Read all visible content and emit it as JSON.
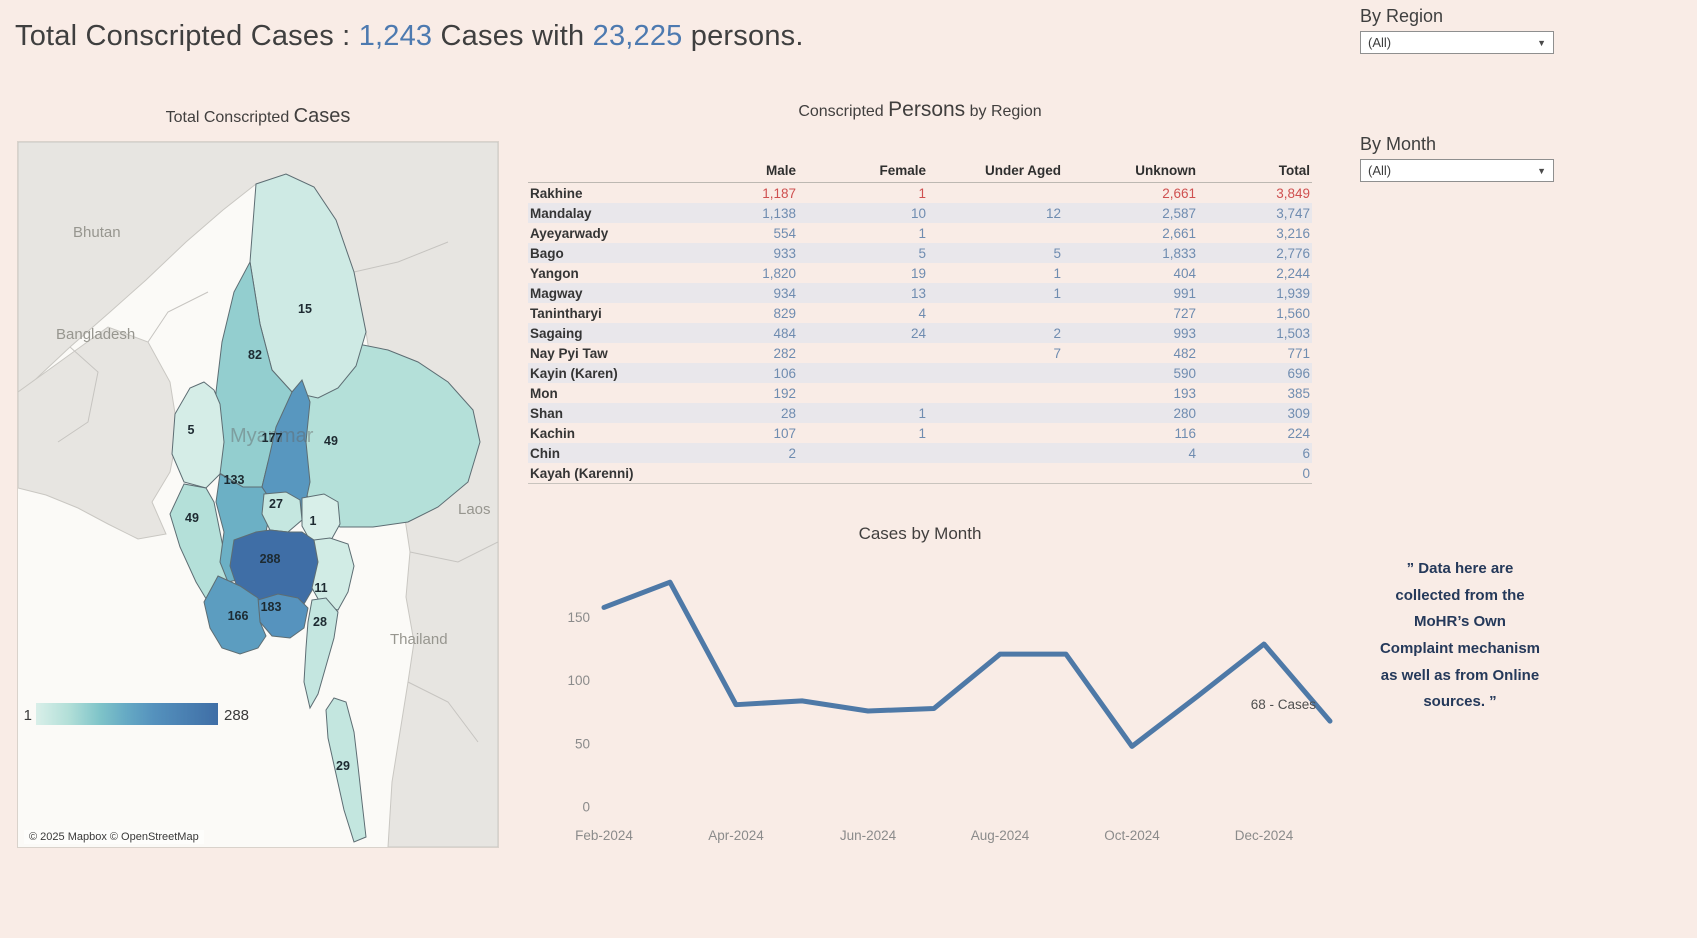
{
  "header": {
    "title_parts": [
      {
        "text": "Total Conscripted Cases : ",
        "accent": false
      },
      {
        "text": "1,243",
        "accent": true
      },
      {
        "text": " Cases with ",
        "accent": false
      },
      {
        "text": "23,225",
        "accent": true
      },
      {
        "text": " persons.",
        "accent": false
      }
    ],
    "accent_color": "#4d7ab0"
  },
  "filters": {
    "region": {
      "label": "By Region",
      "value": "(All)"
    },
    "month": {
      "label": "By Month",
      "value": "(All)"
    }
  },
  "map_panel": {
    "title_prefix": "Total Conscripted ",
    "title_big": "Cases",
    "legend": {
      "min": "1",
      "max": "288"
    },
    "attribution": "© 2025 Mapbox  © OpenStreetMap",
    "country_labels": [
      "Bhutan",
      "Bangladesh",
      "Myanmar",
      "Laos",
      "Thailand"
    ],
    "color_stops": [
      [
        0,
        "#d9efe9"
      ],
      [
        0.18,
        "#b2dfd8"
      ],
      [
        0.35,
        "#7fc4c9"
      ],
      [
        0.5,
        "#65a9c4"
      ],
      [
        0.65,
        "#5491bd"
      ],
      [
        1,
        "#3f6ea6"
      ]
    ],
    "max_value": 288,
    "regions": {
      "kachin": 15,
      "sagaing": 82,
      "chin": 5,
      "shan": 49,
      "mandalay": 177,
      "magway": 133,
      "rakhine": 49,
      "naypyitaw": 27,
      "kayah": 1,
      "bago": 288,
      "kayin": 11,
      "yangon": 183,
      "mon": 28,
      "ayeyarwady": 166,
      "tanintharyi": 29
    }
  },
  "table": {
    "title_prefix": "Conscripted ",
    "title_big": "Persons",
    "title_suffix": " by Region",
    "columns": [
      "",
      "Male",
      "Female",
      "Under Aged",
      "Unknown",
      "Total"
    ],
    "highlight_color": "#cf5050",
    "rows": [
      {
        "region": "Rakhine",
        "male": "1,187",
        "female": "1",
        "under_aged": "",
        "unknown": "2,661",
        "total": "3,849",
        "highlight": true
      },
      {
        "region": "Mandalay",
        "male": "1,138",
        "female": "10",
        "under_aged": "12",
        "unknown": "2,587",
        "total": "3,747",
        "highlight": false
      },
      {
        "region": "Ayeyarwady",
        "male": "554",
        "female": "1",
        "under_aged": "",
        "unknown": "2,661",
        "total": "3,216",
        "highlight": false
      },
      {
        "region": "Bago",
        "male": "933",
        "female": "5",
        "under_aged": "5",
        "unknown": "1,833",
        "total": "2,776",
        "highlight": false
      },
      {
        "region": "Yangon",
        "male": "1,820",
        "female": "19",
        "under_aged": "1",
        "unknown": "404",
        "total": "2,244",
        "highlight": false
      },
      {
        "region": "Magway",
        "male": "934",
        "female": "13",
        "under_aged": "1",
        "unknown": "991",
        "total": "1,939",
        "highlight": false
      },
      {
        "region": "Tanintharyi",
        "male": "829",
        "female": "4",
        "under_aged": "",
        "unknown": "727",
        "total": "1,560",
        "highlight": false
      },
      {
        "region": "Sagaing",
        "male": "484",
        "female": "24",
        "under_aged": "2",
        "unknown": "993",
        "total": "1,503",
        "highlight": false
      },
      {
        "region": "Nay Pyi Taw",
        "male": "282",
        "female": "",
        "under_aged": "7",
        "unknown": "482",
        "total": "771",
        "highlight": false
      },
      {
        "region": "Kayin (Karen)",
        "male": "106",
        "female": "",
        "under_aged": "",
        "unknown": "590",
        "total": "696",
        "highlight": false
      },
      {
        "region": "Mon",
        "male": "192",
        "female": "",
        "under_aged": "",
        "unknown": "193",
        "total": "385",
        "highlight": false
      },
      {
        "region": "Shan",
        "male": "28",
        "female": "1",
        "under_aged": "",
        "unknown": "280",
        "total": "309",
        "highlight": false
      },
      {
        "region": "Kachin",
        "male": "107",
        "female": "1",
        "under_aged": "",
        "unknown": "116",
        "total": "224",
        "highlight": false
      },
      {
        "region": "Chin",
        "male": "2",
        "female": "",
        "under_aged": "",
        "unknown": "4",
        "total": "6",
        "highlight": false
      },
      {
        "region": "Kayah (Karenni)",
        "male": "",
        "female": "",
        "under_aged": "",
        "unknown": "",
        "total": "0",
        "highlight": false
      }
    ]
  },
  "chart_data": {
    "type": "line",
    "title": "Cases by Month",
    "x": [
      "Feb-2024",
      "Mar-2024",
      "Apr-2024",
      "May-2024",
      "Jun-2024",
      "Jul-2024",
      "Aug-2024",
      "Sep-2024",
      "Oct-2024",
      "Nov-2024",
      "Dec-2024",
      "Jan-2025"
    ],
    "values": [
      158,
      178,
      81,
      84,
      76,
      78,
      121,
      121,
      48,
      88,
      129,
      68
    ],
    "x_tick_labels": [
      "Feb-2024",
      "Apr-2024",
      "Jun-2024",
      "Aug-2024",
      "Oct-2024",
      "Dec-2024"
    ],
    "y_ticks": [
      0,
      50,
      100,
      150
    ],
    "ylim": [
      0,
      190
    ],
    "grid": false,
    "line_color": "#4e79a7",
    "annotation": "68 - Cases"
  },
  "quote": {
    "text": "” Data here are collected from the MoHR’s Own Complaint mechanism as well as from Online sources. ”"
  }
}
